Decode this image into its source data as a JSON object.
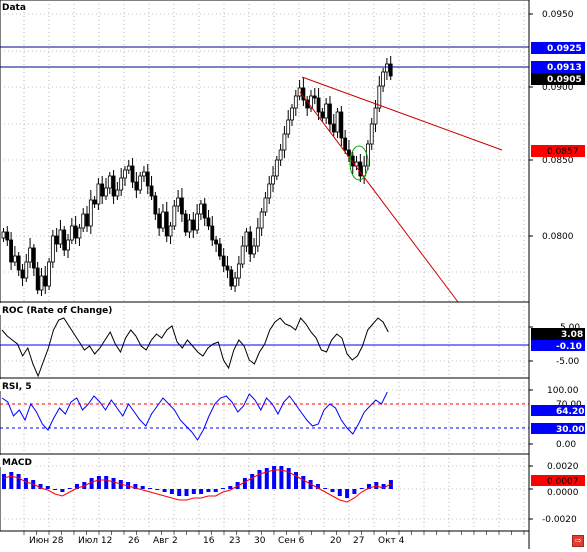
{
  "panes": {
    "price": {
      "title": "Data",
      "axis_labels": [
        "0.0950",
        "0.0900",
        "0.0850",
        "0.0800"
      ],
      "price_tags": [
        {
          "text": "0.0925",
          "kind": "blue"
        },
        {
          "text": "0.0913",
          "kind": "blue"
        },
        {
          "text": "0.0905",
          "kind": "black"
        },
        {
          "text": "0.0857",
          "kind": "red"
        }
      ]
    },
    "roc": {
      "title": "ROC (Rate of Change)",
      "axis_labels": [
        "5.00",
        "-5.00"
      ],
      "tags": [
        {
          "text": "3.08",
          "kind": "black"
        },
        {
          "text": "-0.10",
          "kind": "blue"
        }
      ]
    },
    "rsi": {
      "title": "RSI, 5",
      "axis_labels": [
        "100.00",
        "0.00"
      ],
      "tags": [
        {
          "text": "70.00",
          "kind": "plain"
        },
        {
          "text": "64.20",
          "kind": "blue"
        },
        {
          "text": "30.00",
          "kind": "blue"
        }
      ]
    },
    "macd": {
      "title": "MACD",
      "axis_labels": [
        "0.0020",
        "0.0000",
        "-0.0020"
      ],
      "tags": [
        {
          "text": "0.0007",
          "kind": "red"
        }
      ]
    }
  },
  "x_axis_labels": [
    "Июн 28",
    "Июл 12",
    "26",
    "Авг 2",
    "16",
    "23",
    "30",
    "Сен 6",
    "20",
    "27",
    "Окт 4"
  ],
  "colors": {
    "blue": "#0000ff",
    "red": "#ff0000",
    "trendline": "#cc0000",
    "hline": "#00008b",
    "macd_bar": "#0000ff",
    "macd_signal": "#ff0000",
    "ellipse": "#00aa00"
  },
  "status_icon": "exit-icon"
}
